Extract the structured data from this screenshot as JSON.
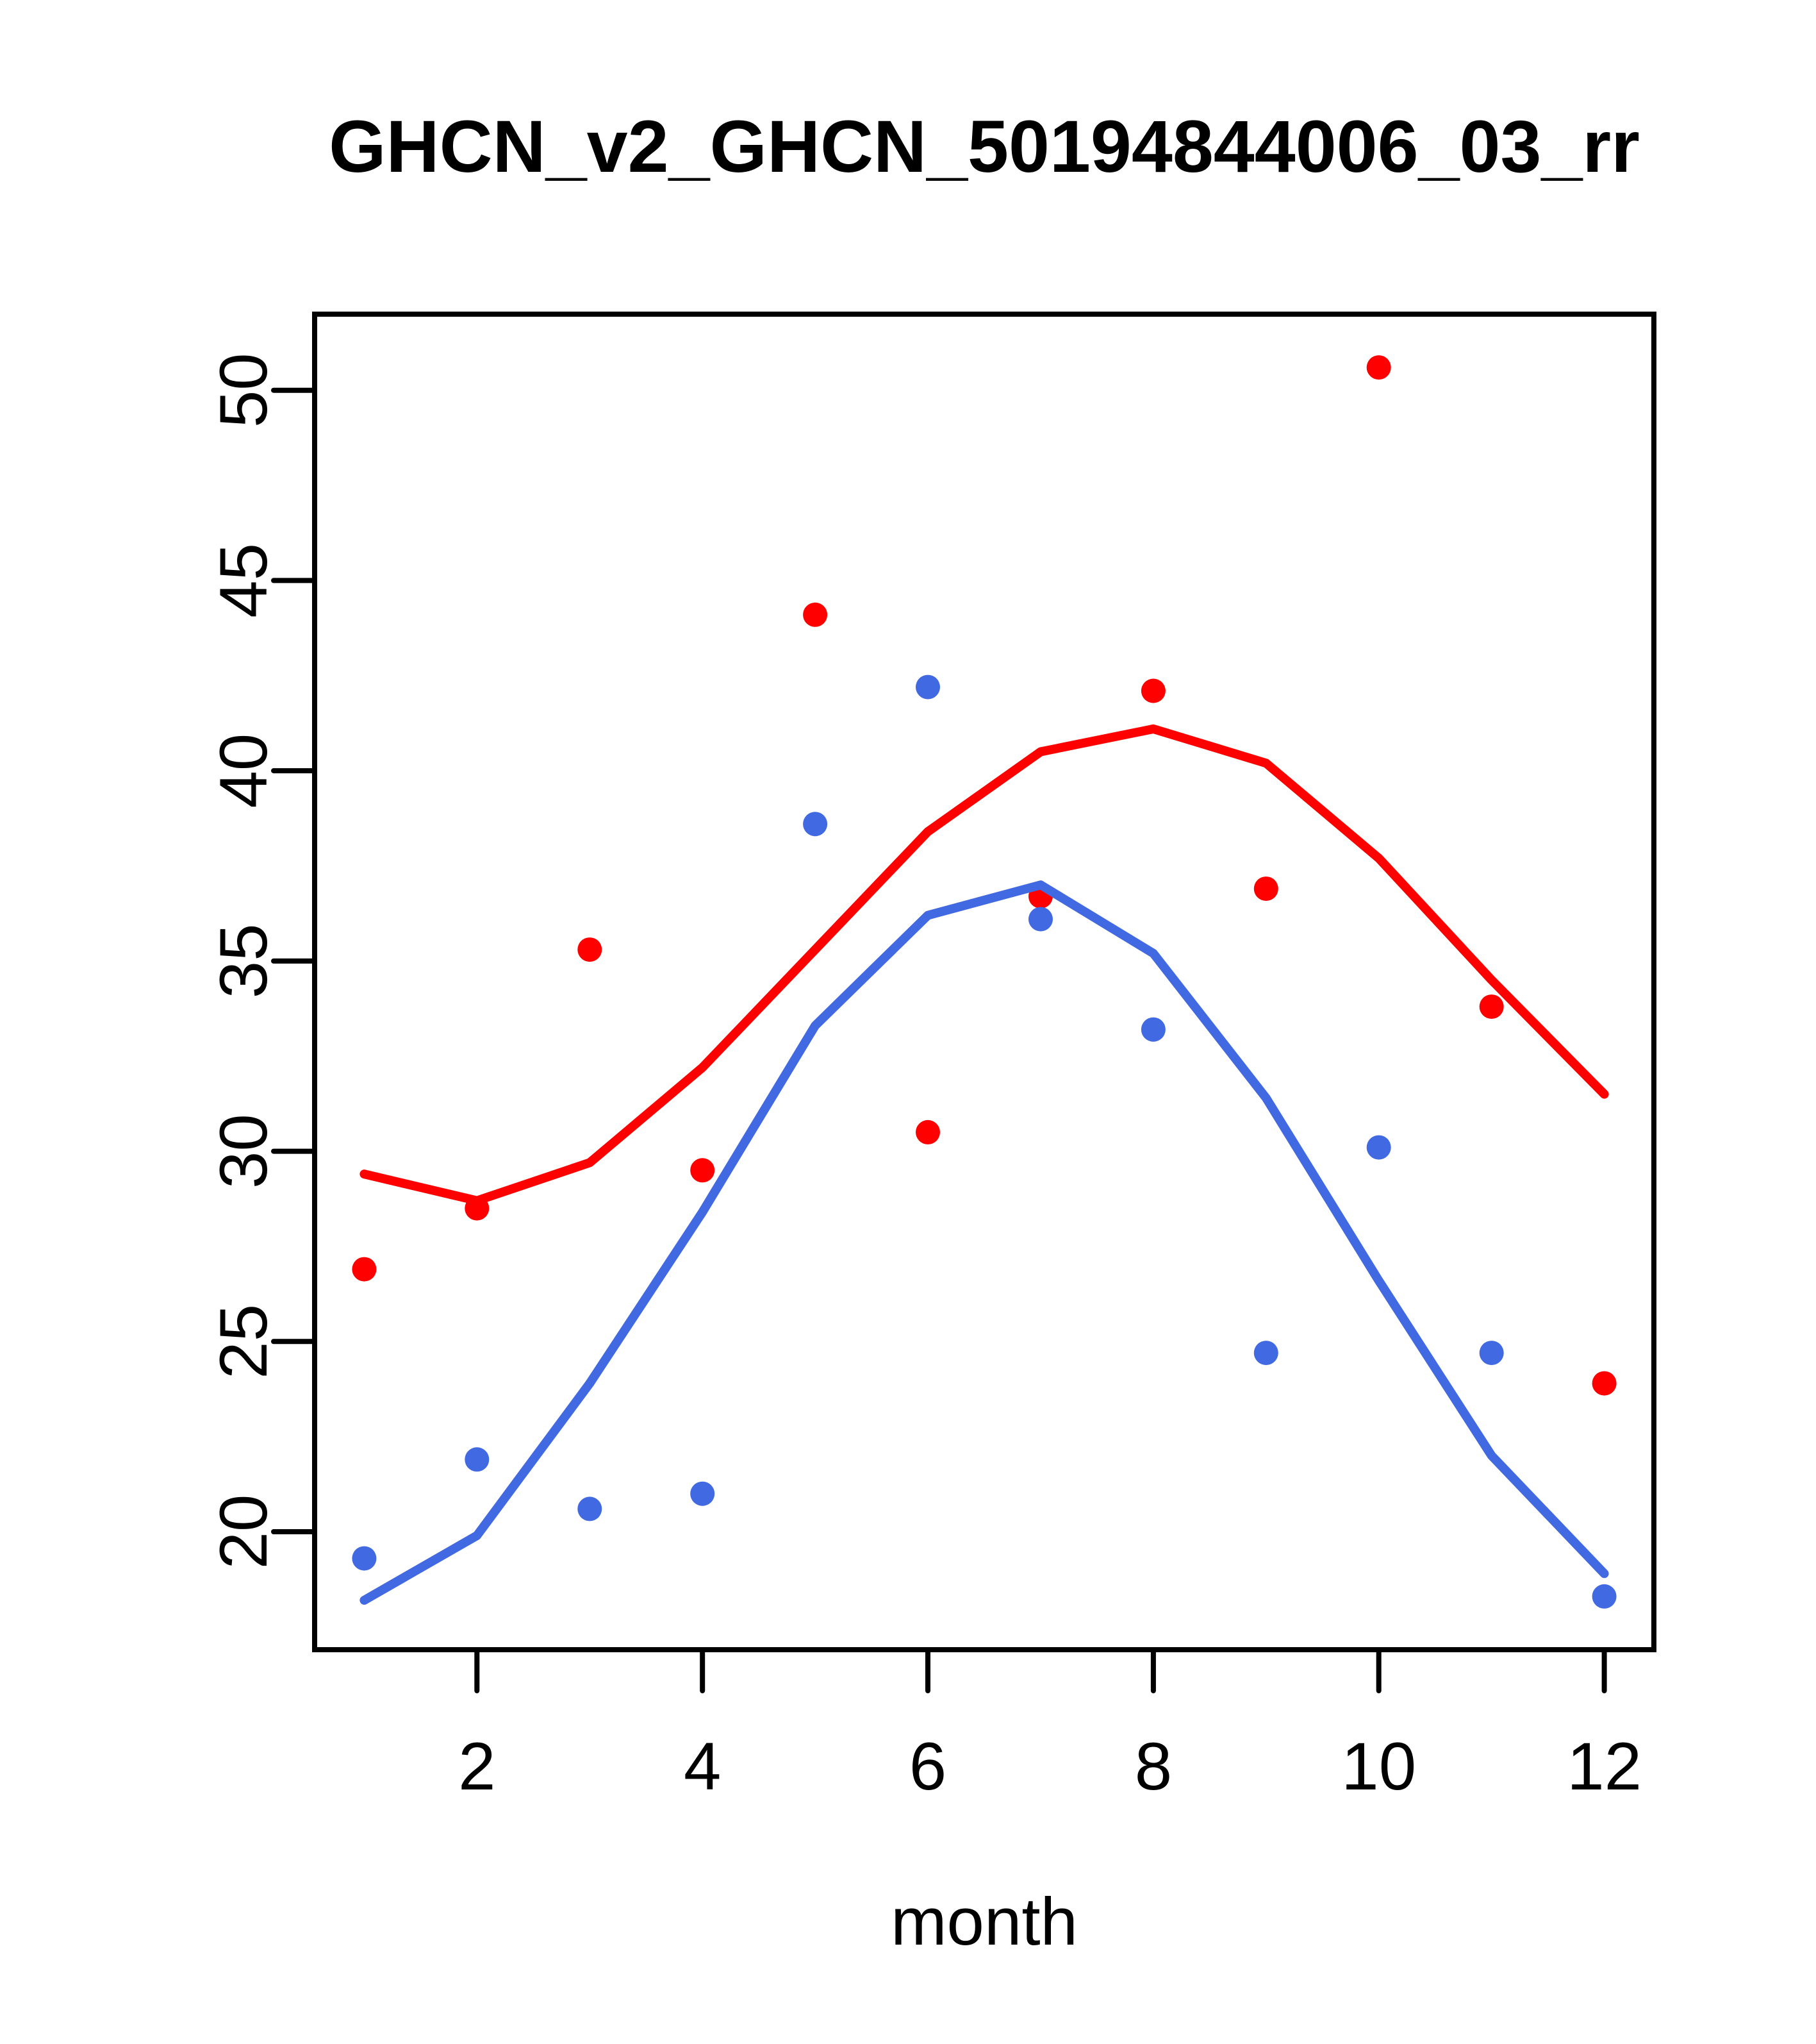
{
  "title": "GHCN_v2_GHCN_50194844006_03_rr",
  "chart_data": {
    "type": "scatter",
    "title": "GHCN_v2_GHCN_50194844006_03_rr",
    "xlabel": "month",
    "ylabel": "",
    "x": [
      1,
      2,
      3,
      4,
      5,
      6,
      7,
      8,
      9,
      10,
      11,
      12
    ],
    "x_ticks": [
      2,
      4,
      6,
      8,
      10,
      12
    ],
    "y_ticks": [
      20,
      25,
      30,
      35,
      40,
      45,
      50
    ],
    "xlim": [
      0.56,
      12.44
    ],
    "ylim": [
      16.9,
      52.0
    ],
    "grid": false,
    "legend": "none",
    "series": [
      {
        "name": "red-points",
        "kind": "scatter",
        "color": "#FF0000",
        "values": [
          26.9,
          28.5,
          35.3,
          29.5,
          44.1,
          30.5,
          36.7,
          42.1,
          36.9,
          50.6,
          33.8,
          23.9
        ]
      },
      {
        "name": "blue-points",
        "kind": "scatter",
        "color": "#4169E1",
        "values": [
          19.3,
          21.9,
          20.6,
          21.0,
          38.6,
          42.2,
          36.1,
          33.2,
          24.7,
          30.1,
          24.7,
          18.3
        ]
      },
      {
        "name": "red-smooth-line",
        "kind": "line",
        "color": "#FF0000",
        "values": [
          29.4,
          28.7,
          29.7,
          32.2,
          35.3,
          38.4,
          40.5,
          41.1,
          40.2,
          37.7,
          34.5,
          31.5
        ]
      },
      {
        "name": "blue-smooth-line",
        "kind": "line",
        "color": "#4169E1",
        "values": [
          18.2,
          19.9,
          23.9,
          28.4,
          33.3,
          36.2,
          37.0,
          35.2,
          31.4,
          26.6,
          22.0,
          18.9
        ]
      }
    ],
    "colors": {
      "red": "#FF0000",
      "blue": "#4169E1",
      "axis": "#000000",
      "background": "#FFFFFF"
    }
  }
}
